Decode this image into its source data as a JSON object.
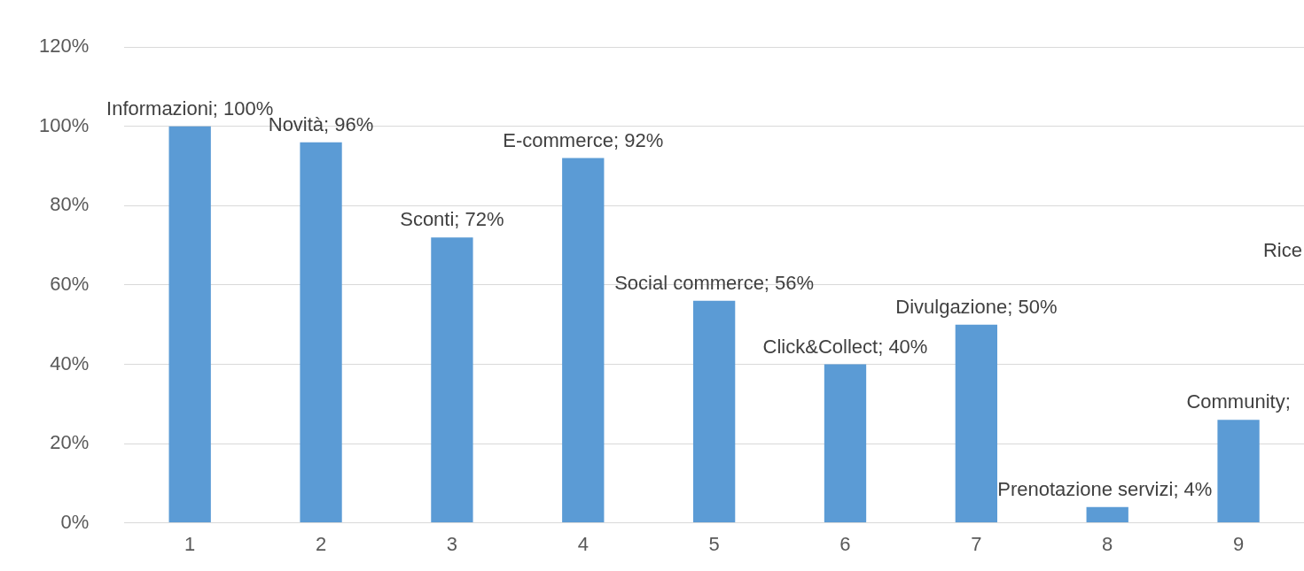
{
  "chart_data": {
    "type": "bar",
    "categories": [
      "1",
      "2",
      "3",
      "4",
      "5",
      "6",
      "7",
      "8",
      "9"
    ],
    "values": [
      100,
      96,
      72,
      92,
      56,
      40,
      50,
      4,
      26
    ],
    "value_labels": [
      "Informazioni; 100%",
      "Novità; 96%",
      "Sconti; 72%",
      "E-commerce; 92%",
      "Social commerce; 56%",
      "Click&Collect; 40%",
      "Divulgazione; 50%",
      "Prenotazione servizi; 4%",
      "Community;"
    ],
    "color": "#5b9bd5",
    "ylim": [
      0,
      120
    ],
    "yticks": [
      {
        "value": 0,
        "label": "0%"
      },
      {
        "value": 20,
        "label": "20%"
      },
      {
        "value": 40,
        "label": "40%"
      },
      {
        "value": 60,
        "label": "60%"
      },
      {
        "value": 80,
        "label": "80%"
      },
      {
        "value": 100,
        "label": "100%"
      },
      {
        "value": 120,
        "label": "120%"
      }
    ],
    "grid": "y",
    "legend": false,
    "annotations": [
      "Rice"
    ]
  }
}
